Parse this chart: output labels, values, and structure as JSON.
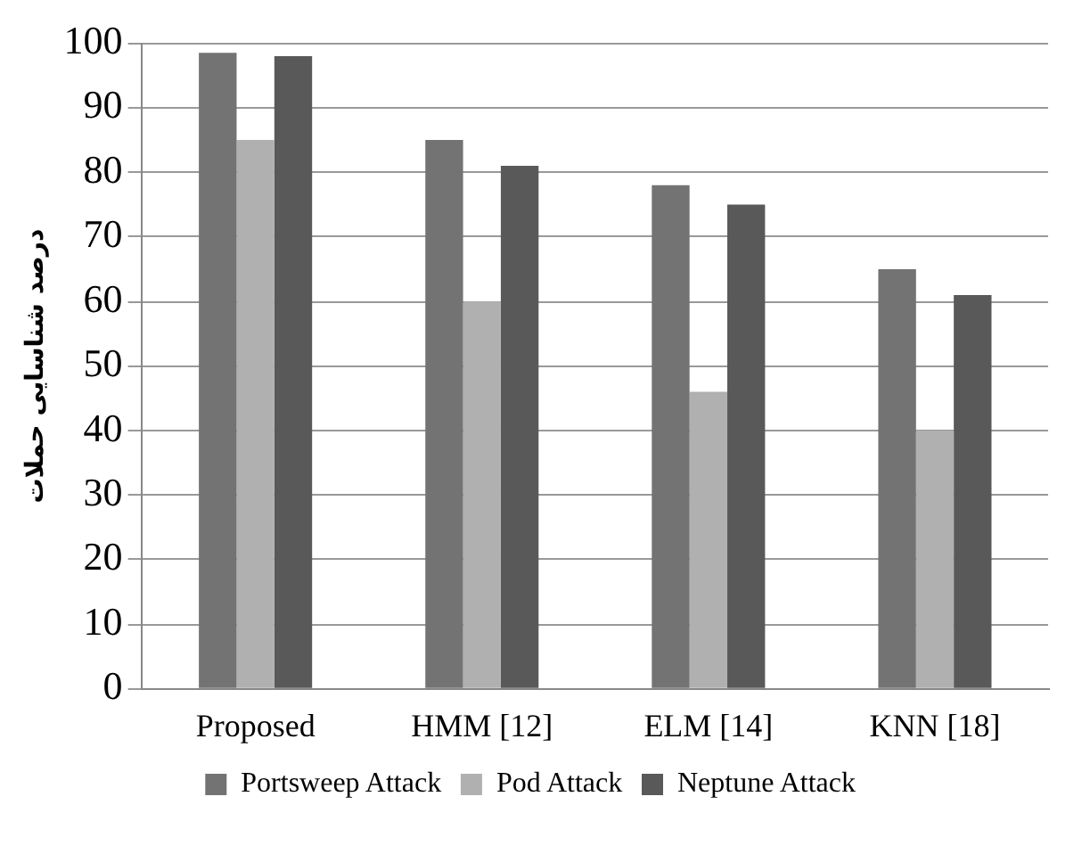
{
  "chart_data": {
    "type": "bar",
    "ylabel": "درصد شناسایی حملات",
    "categories": [
      "Proposed",
      "HMM [12]",
      "ELM [14]",
      "KNN [18]"
    ],
    "series": [
      {
        "name": "Portsweep Attack",
        "color": "#737373",
        "values": [
          98.5,
          85,
          78,
          65
        ]
      },
      {
        "name": "Pod Attack",
        "color": "#b0b0b0",
        "values": [
          85,
          60,
          46,
          40
        ]
      },
      {
        "name": "Neptune Attack",
        "color": "#595959",
        "values": [
          98,
          81,
          75,
          61
        ]
      }
    ],
    "ylim": [
      0,
      100
    ],
    "yticks": [
      0,
      10,
      20,
      30,
      40,
      50,
      60,
      70,
      80,
      90,
      100
    ],
    "grid": "y",
    "legend": "bottom"
  }
}
